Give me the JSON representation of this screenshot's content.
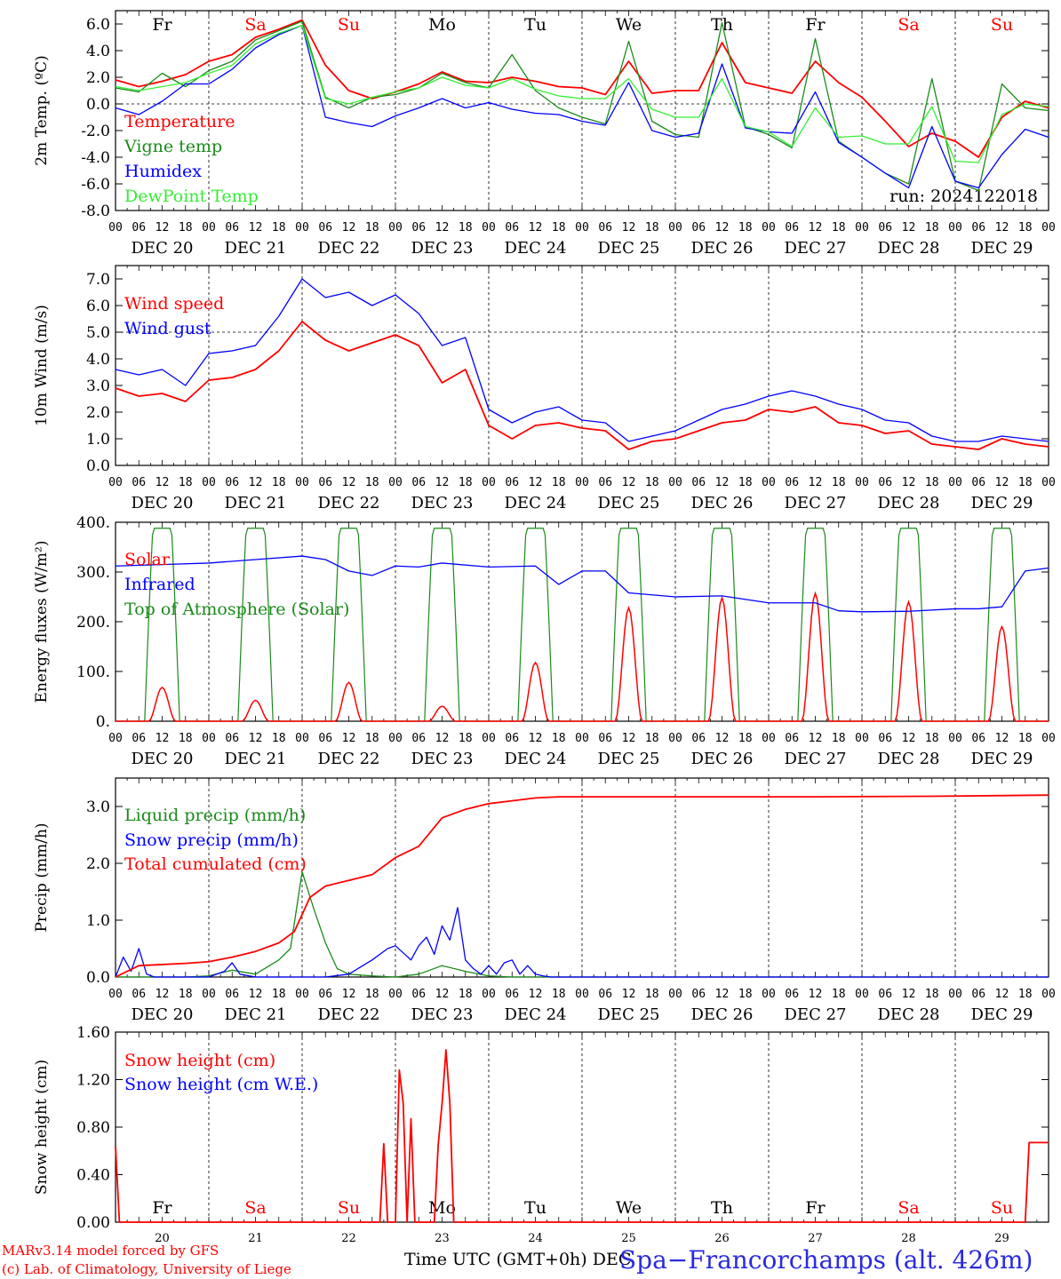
{
  "chart_data": [
    {
      "type": "line",
      "ylabel": "2m Temp. (ºC)",
      "ylim": [
        -8,
        7
      ],
      "yticks": [
        "6.0",
        "4.0",
        "2.0",
        "0.0",
        "-2.0",
        "-4.0",
        "-6.0",
        "-8.0"
      ],
      "ytick_values": [
        6,
        4,
        2,
        0,
        -2,
        -4,
        -6,
        -8
      ],
      "reference_line": 0,
      "day_labels": [
        "DEC 20",
        "DEC 21",
        "DEC 22",
        "DEC 23",
        "DEC 24",
        "DEC 25",
        "DEC 26",
        "DEC 27",
        "DEC 28",
        "DEC 29"
      ],
      "top_weekdays": [
        "Fr",
        "Sa",
        "Su",
        "Mo",
        "Tu",
        "We",
        "Th",
        "Fr",
        "Sa",
        "Su"
      ],
      "run_label": "run: 2024122018",
      "series": [
        {
          "name": "Temperature",
          "color": "#ff0000",
          "x": [
            0,
            6,
            12,
            18,
            24,
            30,
            36,
            42,
            48,
            54,
            60,
            66,
            72,
            78,
            84,
            90,
            96,
            102,
            108,
            114,
            120,
            126,
            132,
            138,
            144,
            150,
            156,
            162,
            168,
            174,
            180,
            186,
            192,
            198,
            204,
            210,
            216,
            222,
            228,
            234,
            240
          ],
          "y": [
            1.8,
            1.3,
            1.7,
            2.2,
            3.2,
            3.7,
            5.0,
            5.6,
            6.3,
            2.9,
            1.0,
            0.4,
            0.9,
            1.5,
            2.4,
            1.7,
            1.6,
            2.0,
            1.7,
            1.3,
            1.2,
            0.7,
            3.2,
            0.8,
            1.0,
            1.0,
            4.6,
            1.6,
            1.2,
            0.8,
            3.2,
            1.6,
            0.5,
            -1.3,
            -3.2,
            -2.2,
            -2.8,
            -4.0,
            -1.0,
            0.2,
            -0.3
          ]
        },
        {
          "name": "Vigne temp",
          "color": "#1a8a1a",
          "x": [
            0,
            6,
            12,
            18,
            24,
            30,
            36,
            42,
            48,
            54,
            60,
            66,
            72,
            78,
            84,
            90,
            96,
            102,
            108,
            114,
            120,
            126,
            132,
            138,
            144,
            150,
            156,
            162,
            168,
            174,
            180,
            186,
            192,
            198,
            204,
            210,
            216,
            222,
            228,
            234,
            240
          ],
          "y": [
            1.2,
            0.9,
            2.3,
            1.3,
            2.5,
            3.2,
            4.8,
            5.5,
            6.2,
            0.5,
            -0.3,
            0.5,
            0.7,
            1.2,
            2.3,
            1.6,
            1.2,
            3.7,
            1.0,
            -0.3,
            -1.0,
            -1.5,
            4.7,
            -1.3,
            -2.3,
            -2.5,
            6.1,
            -1.7,
            -2.3,
            -3.3,
            4.9,
            -2.8,
            -4.0,
            -5.2,
            -6.0,
            1.9,
            -5.8,
            -6.5,
            1.5,
            -0.3,
            -0.5
          ]
        },
        {
          "name": "Humidex",
          "color": "#0000ff",
          "x": [
            0,
            6,
            12,
            18,
            24,
            30,
            36,
            42,
            48,
            54,
            60,
            66,
            72,
            78,
            84,
            90,
            96,
            102,
            108,
            114,
            120,
            126,
            132,
            138,
            144,
            150,
            156,
            162,
            168,
            174,
            180,
            186,
            192,
            198,
            204,
            210,
            216,
            222,
            228,
            234,
            240
          ],
          "y": [
            -0.3,
            -0.8,
            0.2,
            1.5,
            1.5,
            2.6,
            4.2,
            5.2,
            5.9,
            -1.0,
            -1.4,
            -1.7,
            -0.9,
            -0.3,
            0.4,
            -0.3,
            0.1,
            -0.4,
            -0.7,
            -0.8,
            -1.3,
            -1.6,
            1.6,
            -2.0,
            -2.5,
            -2.2,
            3.0,
            -1.8,
            -2.1,
            -2.2,
            0.9,
            -2.9,
            -4.0,
            -5.2,
            -6.3,
            -1.7,
            -5.8,
            -6.3,
            -3.8,
            -1.9,
            -2.5
          ]
        },
        {
          "name": "DewPoint Temp",
          "color": "#33ee33",
          "x": [
            0,
            6,
            12,
            18,
            24,
            30,
            36,
            42,
            48,
            54,
            60,
            66,
            72,
            78,
            84,
            90,
            96,
            102,
            108,
            114,
            120,
            126,
            132,
            138,
            144,
            150,
            156,
            162,
            168,
            174,
            180,
            186,
            192,
            198,
            204,
            210,
            216,
            222,
            228,
            234,
            240
          ],
          "y": [
            1.3,
            1.0,
            1.3,
            1.6,
            2.3,
            2.9,
            4.5,
            5.3,
            5.9,
            0.4,
            0.0,
            0.5,
            0.9,
            1.2,
            2.0,
            1.4,
            1.2,
            1.9,
            1.1,
            0.6,
            0.4,
            0.4,
            1.9,
            -0.4,
            -1.0,
            -1.0,
            1.9,
            -1.7,
            -2.1,
            -3.2,
            -0.3,
            -2.5,
            -2.4,
            -3.0,
            -3.0,
            -0.2,
            -4.3,
            -4.4,
            -0.8,
            0.0,
            -0.2
          ]
        }
      ]
    },
    {
      "type": "line",
      "ylabel": "10m Wind (m/s)",
      "ylim": [
        0,
        7.5
      ],
      "yticks": [
        "7.0",
        "6.0",
        "5.0",
        "4.0",
        "3.0",
        "2.0",
        "1.0",
        "0.0"
      ],
      "ytick_values": [
        7,
        6,
        5,
        4,
        3,
        2,
        1,
        0
      ],
      "reference_line": 5,
      "day_labels": [
        "DEC 20",
        "DEC 21",
        "DEC 22",
        "DEC 23",
        "DEC 24",
        "DEC 25",
        "DEC 26",
        "DEC 27",
        "DEC 28",
        "DEC 29"
      ],
      "series": [
        {
          "name": "Wind speed",
          "color": "#ff0000",
          "x": [
            0,
            6,
            12,
            18,
            24,
            30,
            36,
            42,
            48,
            54,
            60,
            66,
            72,
            78,
            84,
            90,
            96,
            102,
            108,
            114,
            120,
            126,
            132,
            138,
            144,
            150,
            156,
            162,
            168,
            174,
            180,
            186,
            192,
            198,
            204,
            210,
            216,
            222,
            228,
            234,
            240
          ],
          "y": [
            2.9,
            2.6,
            2.7,
            2.4,
            3.2,
            3.3,
            3.6,
            4.3,
            5.4,
            4.7,
            4.3,
            4.6,
            4.9,
            4.5,
            3.1,
            3.6,
            1.5,
            1.0,
            1.5,
            1.6,
            1.4,
            1.3,
            0.6,
            0.9,
            1.0,
            1.3,
            1.6,
            1.7,
            2.1,
            2.0,
            2.2,
            1.6,
            1.5,
            1.2,
            1.3,
            0.8,
            0.7,
            0.6,
            1.0,
            0.8,
            0.7
          ]
        },
        {
          "name": "Wind gust",
          "color": "#0000ff",
          "x": [
            0,
            6,
            12,
            18,
            24,
            30,
            36,
            42,
            48,
            54,
            60,
            66,
            72,
            78,
            84,
            90,
            96,
            102,
            108,
            114,
            120,
            126,
            132,
            138,
            144,
            150,
            156,
            162,
            168,
            174,
            180,
            186,
            192,
            198,
            204,
            210,
            216,
            222,
            228,
            234,
            240
          ],
          "y": [
            3.6,
            3.4,
            3.6,
            3.0,
            4.2,
            4.3,
            4.5,
            5.6,
            7.0,
            6.3,
            6.5,
            6.0,
            6.4,
            5.7,
            4.5,
            4.8,
            2.1,
            1.6,
            2.0,
            2.2,
            1.7,
            1.6,
            0.9,
            1.1,
            1.3,
            1.7,
            2.1,
            2.3,
            2.6,
            2.8,
            2.6,
            2.3,
            2.1,
            1.7,
            1.6,
            1.1,
            0.9,
            0.9,
            1.1,
            1.0,
            0.9
          ]
        }
      ]
    },
    {
      "type": "line",
      "ylabel": "Energy fluxes (W/m²)",
      "ylim": [
        0,
        400
      ],
      "yticks": [
        "400.",
        "300.",
        "200.",
        "100.",
        "0."
      ],
      "ytick_values": [
        400,
        300,
        200,
        100,
        0
      ],
      "day_labels": [
        "DEC 20",
        "DEC 21",
        "DEC 22",
        "DEC 23",
        "DEC 24",
        "DEC 25",
        "DEC 26",
        "DEC 27",
        "DEC 28",
        "DEC 29"
      ],
      "solar_peaks": [
        68,
        42,
        78,
        30,
        118,
        228,
        248,
        257,
        240,
        190
      ],
      "toa_peak": 388,
      "series": [
        {
          "name": "Solar",
          "color": "#ff0000"
        },
        {
          "name": "Infrared",
          "color": "#0000ff",
          "x": [
            0,
            12,
            24,
            36,
            48,
            54,
            60,
            66,
            72,
            78,
            84,
            96,
            108,
            114,
            120,
            126,
            132,
            144,
            156,
            168,
            180,
            186,
            192,
            204,
            216,
            222,
            228,
            234,
            240
          ],
          "y": [
            312,
            315,
            318,
            325,
            332,
            325,
            302,
            293,
            312,
            310,
            318,
            310,
            312,
            275,
            302,
            302,
            258,
            250,
            252,
            238,
            238,
            222,
            220,
            221,
            226,
            226,
            230,
            302,
            308
          ]
        },
        {
          "name": "Top of Atmosphere (Solar)",
          "color": "#1a8a1a"
        }
      ]
    },
    {
      "type": "line",
      "ylabel": "Precip (mm/h)",
      "ylim": [
        0,
        3.5
      ],
      "yticks": [
        "3.0",
        "2.0",
        "1.0",
        "0.0"
      ],
      "ytick_values": [
        3,
        2,
        1,
        0
      ],
      "day_labels": [
        "DEC 20",
        "DEC 21",
        "DEC 22",
        "DEC 23",
        "DEC 24",
        "DEC 25",
        "DEC 26",
        "DEC 27",
        "DEC 28",
        "DEC 29"
      ],
      "series": [
        {
          "name": "Liquid precip (mm/h)",
          "color": "#1a8a1a",
          "x": [
            0,
            6,
            12,
            18,
            24,
            30,
            36,
            42,
            45,
            48,
            51,
            54,
            57,
            60,
            66,
            72,
            78,
            84,
            90,
            96,
            102,
            108,
            114,
            240
          ],
          "y": [
            0,
            0,
            0,
            0,
            0.02,
            0.12,
            0.05,
            0.3,
            0.5,
            1.85,
            1.2,
            0.6,
            0.15,
            0.05,
            0.02,
            0.0,
            0.05,
            0.2,
            0.1,
            0.02,
            0,
            0,
            0,
            0
          ]
        },
        {
          "name": "Snow precip (mm/h)",
          "color": "#0000ff",
          "x": [
            0,
            2,
            4,
            6,
            8,
            10,
            14,
            18,
            24,
            28,
            30,
            32,
            36,
            42,
            48,
            54,
            60,
            66,
            70,
            72,
            76,
            78,
            80,
            82,
            84,
            86,
            88,
            90,
            92,
            94,
            96,
            98,
            100,
            102,
            104,
            106,
            108,
            110,
            112,
            114,
            240
          ],
          "y": [
            0,
            0.35,
            0.1,
            0.5,
            0.05,
            0,
            0,
            0,
            0,
            0.1,
            0.25,
            0.05,
            0,
            0,
            0,
            0,
            0.05,
            0.3,
            0.5,
            0.55,
            0.3,
            0.55,
            0.7,
            0.4,
            0.9,
            0.65,
            1.22,
            0.3,
            0.15,
            0.05,
            0.2,
            0.05,
            0.25,
            0.3,
            0.05,
            0.2,
            0.05,
            0.02,
            0,
            0,
            0
          ]
        },
        {
          "name": "Total cumulated (cm)",
          "color": "#ff0000",
          "x": [
            0,
            6,
            12,
            18,
            24,
            30,
            36,
            42,
            46,
            48,
            50,
            54,
            60,
            66,
            72,
            78,
            84,
            90,
            96,
            102,
            108,
            114,
            120,
            150,
            180,
            210,
            240
          ],
          "y": [
            0,
            0.2,
            0.22,
            0.24,
            0.27,
            0.35,
            0.45,
            0.6,
            0.8,
            1.1,
            1.4,
            1.6,
            1.7,
            1.8,
            2.1,
            2.3,
            2.8,
            2.95,
            3.05,
            3.1,
            3.15,
            3.17,
            3.17,
            3.17,
            3.17,
            3.18,
            3.2
          ]
        }
      ]
    },
    {
      "type": "line",
      "ylabel": "Snow height (cm)",
      "xlabel": "Time UTC (GMT+0h) DEC",
      "ylim": [
        0,
        1.6
      ],
      "yticks": [
        "1.60",
        "1.20",
        "0.80",
        "0.40",
        "0.00"
      ],
      "ytick_values": [
        1.6,
        1.2,
        0.8,
        0.4,
        0
      ],
      "bottom_weekdays": [
        "Fr",
        "Sa",
        "Su",
        "Mo",
        "Tu",
        "We",
        "Th",
        "Fr",
        "Sa",
        "Su"
      ],
      "day_numbers": [
        "20",
        "21",
        "22",
        "23",
        "24",
        "25",
        "26",
        "27",
        "28",
        "29"
      ],
      "series": [
        {
          "name": "Snow height (cm)",
          "color": "#ff0000",
          "x": [
            0,
            1,
            68,
            69,
            70,
            71,
            72,
            73,
            74,
            75,
            76,
            77,
            78,
            79,
            80,
            81,
            82,
            83,
            84,
            85,
            86,
            87,
            88,
            89,
            90,
            91,
            234,
            235,
            240
          ],
          "y": [
            0.64,
            0,
            0,
            0.66,
            0,
            0,
            0,
            1.28,
            1.0,
            0,
            0.87,
            0,
            0,
            0,
            0,
            0,
            0,
            0.65,
            1.0,
            1.45,
            1.0,
            0,
            0,
            0,
            0,
            0,
            0,
            0.67,
            0.67
          ]
        },
        {
          "name": "Snow height (cm W.E.)",
          "color": "#0000ff"
        }
      ]
    }
  ],
  "footer": {
    "credit_line1": "MARv3.14 model forced by GFS",
    "credit_line2": "(c) Lab. of Climatology, University of Liege",
    "station": "Spa−Francorchamps (alt. 426m)"
  }
}
